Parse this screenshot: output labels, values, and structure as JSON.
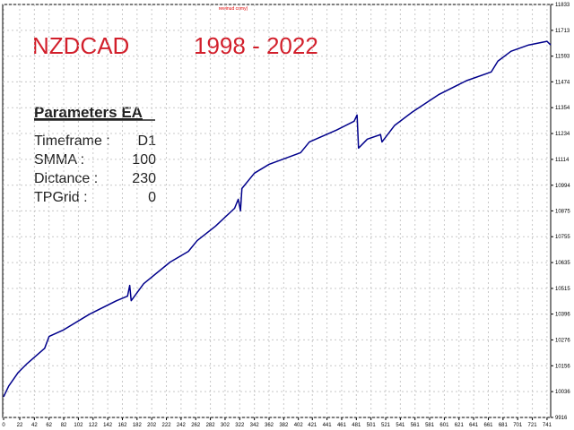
{
  "chart_data": {
    "type": "line",
    "title": "NZDCAD",
    "subtitle": "1998 - 2022",
    "top_note": "rewinud comy)",
    "parameters": {
      "title": "Parameters EA",
      "rows": [
        {
          "label": "Timeframe :",
          "value": "D1"
        },
        {
          "label": "SMMA :",
          "value": "100"
        },
        {
          "label": "Dictance :",
          "value": "230"
        },
        {
          "label": "TPGrid :",
          "value": "0"
        }
      ]
    },
    "grid": true,
    "xlim": [
      0,
      746
    ],
    "ylim": [
      9916,
      11833
    ],
    "xticks": [
      0,
      22,
      42,
      62,
      82,
      102,
      122,
      142,
      162,
      182,
      202,
      222,
      242,
      262,
      282,
      302,
      322,
      342,
      362,
      382,
      402,
      421,
      441,
      461,
      481,
      501,
      521,
      541,
      561,
      581,
      601,
      621,
      641,
      661,
      681,
      701,
      721,
      741
    ],
    "yticks": [
      9916,
      10036,
      10156,
      10276,
      10396,
      10515,
      10635,
      10755,
      10875,
      10994,
      11114,
      11234,
      11354,
      11474,
      11593,
      11713,
      11833
    ],
    "series": [
      {
        "color": "#00008b",
        "x": [
          0,
          7,
          20,
          32,
          56,
          62,
          81,
          117,
          154,
          169,
          172,
          174,
          191,
          227,
          252,
          264,
          289,
          315,
          320,
          323,
          325,
          342,
          362,
          405,
          417,
          454,
          478,
          482,
          484,
          496,
          514,
          516,
          533,
          557,
          594,
          631,
          665,
          674,
          692,
          716,
          741,
          746
        ],
        "values": [
          10012,
          10062,
          10125,
          10166,
          10237,
          10292,
          10321,
          10395,
          10458,
          10479,
          10529,
          10458,
          10537,
          10637,
          10687,
          10737,
          10804,
          10887,
          10929,
          10875,
          10979,
          11050,
          11091,
          11145,
          11195,
          11250,
          11291,
          11320,
          11166,
          11208,
          11229,
          11195,
          11271,
          11333,
          11416,
          11479,
          11520,
          11570,
          11616,
          11645,
          11662,
          11645
        ]
      }
    ]
  }
}
